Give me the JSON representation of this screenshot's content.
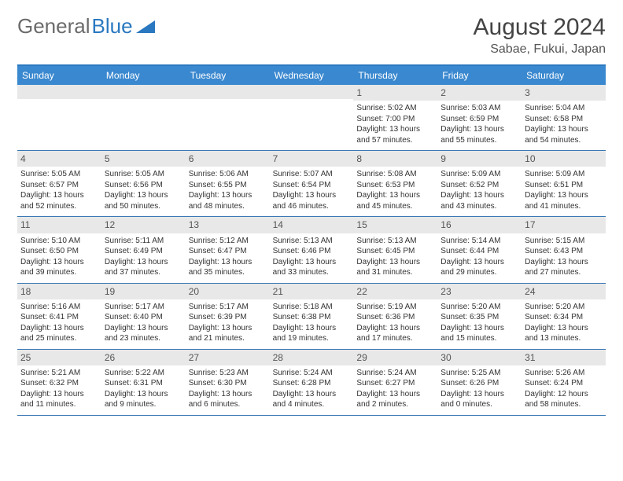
{
  "logo": {
    "text1": "General",
    "text2": "Blue"
  },
  "title": "August 2024",
  "location": "Sabae, Fukui, Japan",
  "colors": {
    "header_bg": "#3a88cf",
    "header_border": "#2a78c0",
    "daynum_bg": "#e8e8e8",
    "row_border": "#3a78b5",
    "text": "#333333"
  },
  "day_labels": [
    "Sunday",
    "Monday",
    "Tuesday",
    "Wednesday",
    "Thursday",
    "Friday",
    "Saturday"
  ],
  "weeks": [
    [
      {
        "n": "",
        "l1": "",
        "l2": "",
        "l3": "",
        "l4": ""
      },
      {
        "n": "",
        "l1": "",
        "l2": "",
        "l3": "",
        "l4": ""
      },
      {
        "n": "",
        "l1": "",
        "l2": "",
        "l3": "",
        "l4": ""
      },
      {
        "n": "",
        "l1": "",
        "l2": "",
        "l3": "",
        "l4": ""
      },
      {
        "n": "1",
        "l1": "Sunrise: 5:02 AM",
        "l2": "Sunset: 7:00 PM",
        "l3": "Daylight: 13 hours",
        "l4": "and 57 minutes."
      },
      {
        "n": "2",
        "l1": "Sunrise: 5:03 AM",
        "l2": "Sunset: 6:59 PM",
        "l3": "Daylight: 13 hours",
        "l4": "and 55 minutes."
      },
      {
        "n": "3",
        "l1": "Sunrise: 5:04 AM",
        "l2": "Sunset: 6:58 PM",
        "l3": "Daylight: 13 hours",
        "l4": "and 54 minutes."
      }
    ],
    [
      {
        "n": "4",
        "l1": "Sunrise: 5:05 AM",
        "l2": "Sunset: 6:57 PM",
        "l3": "Daylight: 13 hours",
        "l4": "and 52 minutes."
      },
      {
        "n": "5",
        "l1": "Sunrise: 5:05 AM",
        "l2": "Sunset: 6:56 PM",
        "l3": "Daylight: 13 hours",
        "l4": "and 50 minutes."
      },
      {
        "n": "6",
        "l1": "Sunrise: 5:06 AM",
        "l2": "Sunset: 6:55 PM",
        "l3": "Daylight: 13 hours",
        "l4": "and 48 minutes."
      },
      {
        "n": "7",
        "l1": "Sunrise: 5:07 AM",
        "l2": "Sunset: 6:54 PM",
        "l3": "Daylight: 13 hours",
        "l4": "and 46 minutes."
      },
      {
        "n": "8",
        "l1": "Sunrise: 5:08 AM",
        "l2": "Sunset: 6:53 PM",
        "l3": "Daylight: 13 hours",
        "l4": "and 45 minutes."
      },
      {
        "n": "9",
        "l1": "Sunrise: 5:09 AM",
        "l2": "Sunset: 6:52 PM",
        "l3": "Daylight: 13 hours",
        "l4": "and 43 minutes."
      },
      {
        "n": "10",
        "l1": "Sunrise: 5:09 AM",
        "l2": "Sunset: 6:51 PM",
        "l3": "Daylight: 13 hours",
        "l4": "and 41 minutes."
      }
    ],
    [
      {
        "n": "11",
        "l1": "Sunrise: 5:10 AM",
        "l2": "Sunset: 6:50 PM",
        "l3": "Daylight: 13 hours",
        "l4": "and 39 minutes."
      },
      {
        "n": "12",
        "l1": "Sunrise: 5:11 AM",
        "l2": "Sunset: 6:49 PM",
        "l3": "Daylight: 13 hours",
        "l4": "and 37 minutes."
      },
      {
        "n": "13",
        "l1": "Sunrise: 5:12 AM",
        "l2": "Sunset: 6:47 PM",
        "l3": "Daylight: 13 hours",
        "l4": "and 35 minutes."
      },
      {
        "n": "14",
        "l1": "Sunrise: 5:13 AM",
        "l2": "Sunset: 6:46 PM",
        "l3": "Daylight: 13 hours",
        "l4": "and 33 minutes."
      },
      {
        "n": "15",
        "l1": "Sunrise: 5:13 AM",
        "l2": "Sunset: 6:45 PM",
        "l3": "Daylight: 13 hours",
        "l4": "and 31 minutes."
      },
      {
        "n": "16",
        "l1": "Sunrise: 5:14 AM",
        "l2": "Sunset: 6:44 PM",
        "l3": "Daylight: 13 hours",
        "l4": "and 29 minutes."
      },
      {
        "n": "17",
        "l1": "Sunrise: 5:15 AM",
        "l2": "Sunset: 6:43 PM",
        "l3": "Daylight: 13 hours",
        "l4": "and 27 minutes."
      }
    ],
    [
      {
        "n": "18",
        "l1": "Sunrise: 5:16 AM",
        "l2": "Sunset: 6:41 PM",
        "l3": "Daylight: 13 hours",
        "l4": "and 25 minutes."
      },
      {
        "n": "19",
        "l1": "Sunrise: 5:17 AM",
        "l2": "Sunset: 6:40 PM",
        "l3": "Daylight: 13 hours",
        "l4": "and 23 minutes."
      },
      {
        "n": "20",
        "l1": "Sunrise: 5:17 AM",
        "l2": "Sunset: 6:39 PM",
        "l3": "Daylight: 13 hours",
        "l4": "and 21 minutes."
      },
      {
        "n": "21",
        "l1": "Sunrise: 5:18 AM",
        "l2": "Sunset: 6:38 PM",
        "l3": "Daylight: 13 hours",
        "l4": "and 19 minutes."
      },
      {
        "n": "22",
        "l1": "Sunrise: 5:19 AM",
        "l2": "Sunset: 6:36 PM",
        "l3": "Daylight: 13 hours",
        "l4": "and 17 minutes."
      },
      {
        "n": "23",
        "l1": "Sunrise: 5:20 AM",
        "l2": "Sunset: 6:35 PM",
        "l3": "Daylight: 13 hours",
        "l4": "and 15 minutes."
      },
      {
        "n": "24",
        "l1": "Sunrise: 5:20 AM",
        "l2": "Sunset: 6:34 PM",
        "l3": "Daylight: 13 hours",
        "l4": "and 13 minutes."
      }
    ],
    [
      {
        "n": "25",
        "l1": "Sunrise: 5:21 AM",
        "l2": "Sunset: 6:32 PM",
        "l3": "Daylight: 13 hours",
        "l4": "and 11 minutes."
      },
      {
        "n": "26",
        "l1": "Sunrise: 5:22 AM",
        "l2": "Sunset: 6:31 PM",
        "l3": "Daylight: 13 hours",
        "l4": "and 9 minutes."
      },
      {
        "n": "27",
        "l1": "Sunrise: 5:23 AM",
        "l2": "Sunset: 6:30 PM",
        "l3": "Daylight: 13 hours",
        "l4": "and 6 minutes."
      },
      {
        "n": "28",
        "l1": "Sunrise: 5:24 AM",
        "l2": "Sunset: 6:28 PM",
        "l3": "Daylight: 13 hours",
        "l4": "and 4 minutes."
      },
      {
        "n": "29",
        "l1": "Sunrise: 5:24 AM",
        "l2": "Sunset: 6:27 PM",
        "l3": "Daylight: 13 hours",
        "l4": "and 2 minutes."
      },
      {
        "n": "30",
        "l1": "Sunrise: 5:25 AM",
        "l2": "Sunset: 6:26 PM",
        "l3": "Daylight: 13 hours",
        "l4": "and 0 minutes."
      },
      {
        "n": "31",
        "l1": "Sunrise: 5:26 AM",
        "l2": "Sunset: 6:24 PM",
        "l3": "Daylight: 12 hours",
        "l4": "and 58 minutes."
      }
    ]
  ]
}
